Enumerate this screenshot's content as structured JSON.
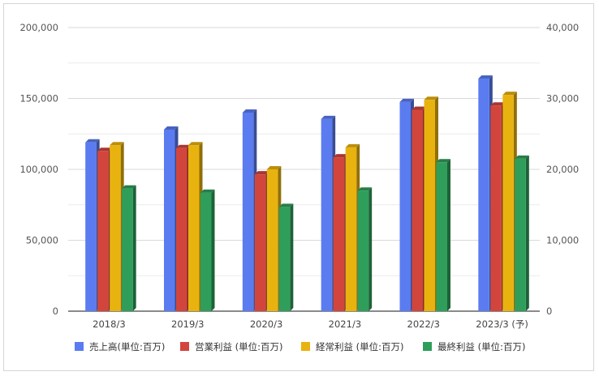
{
  "chart_data": {
    "type": "bar",
    "title": "",
    "categories": [
      "2018/3",
      "2019/3",
      "2020/3",
      "2021/3",
      "2022/3",
      "2023/3 (予)"
    ],
    "series": [
      {
        "name": "売上高(単位:百万)",
        "axis": "left",
        "color": "#5b7cf0",
        "values": [
          119000,
          128000,
          140000,
          135500,
          147500,
          164000
        ]
      },
      {
        "name": "営業利益 (単位:百万)",
        "axis": "right",
        "color": "#d2453d",
        "values": [
          22600,
          23000,
          19300,
          21700,
          28400,
          29000
        ]
      },
      {
        "name": "経常利益 (単位:百万)",
        "axis": "right",
        "color": "#e8b30f",
        "values": [
          23400,
          23400,
          20000,
          23100,
          29800,
          30500
        ]
      },
      {
        "name": "最終利益 (単位:百万)",
        "axis": "right",
        "color": "#2f9e5a",
        "values": [
          17300,
          16700,
          14700,
          17000,
          21000,
          21500
        ]
      }
    ],
    "y_left": {
      "min": 0,
      "max": 200000,
      "ticks": [
        "0",
        "50,000",
        "100,000",
        "150,000",
        "200,000"
      ]
    },
    "y_right": {
      "min": 0,
      "max": 40000,
      "ticks": [
        "0",
        "10,000",
        "20,000",
        "30,000",
        "40,000"
      ]
    },
    "grid": true,
    "legend_position": "bottom"
  }
}
